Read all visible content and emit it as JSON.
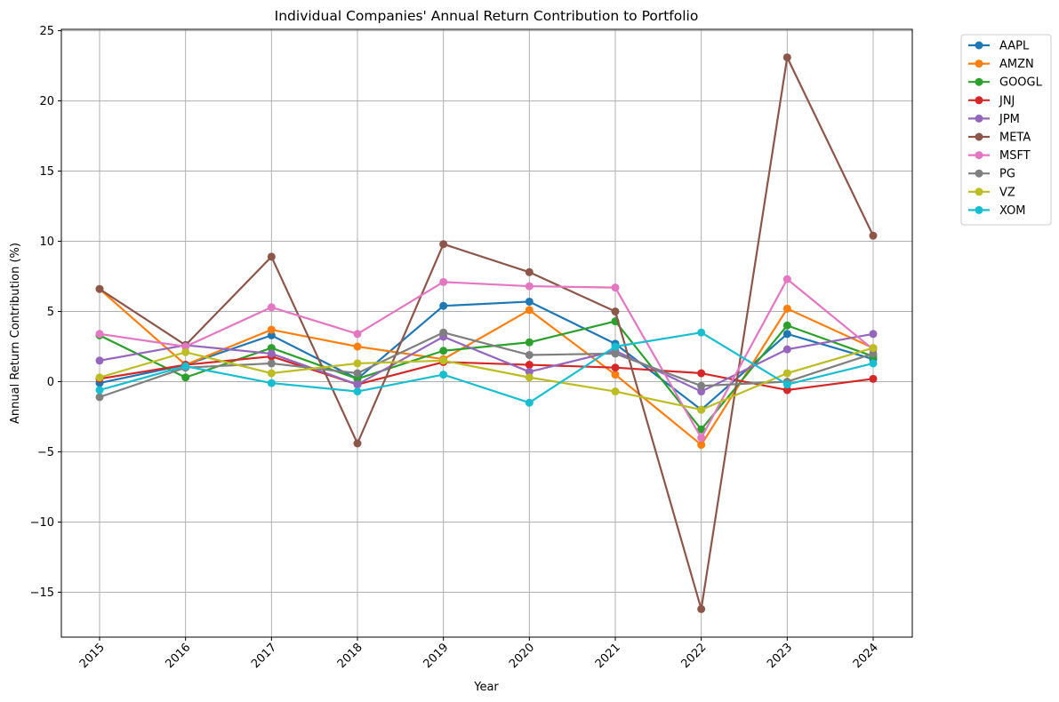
{
  "chart_data": {
    "type": "line",
    "title": "Individual Companies' Annual Return Contribution to Portfolio",
    "xlabel": "Year",
    "ylabel": "Annual Return Contribution (%)",
    "categories": [
      "2015",
      "2016",
      "2017",
      "2018",
      "2019",
      "2020",
      "2021",
      "2022",
      "2023",
      "2024"
    ],
    "ylim": [
      -18.2,
      25.1
    ],
    "yticks": [
      -15,
      -10,
      -5,
      0,
      5,
      10,
      15,
      20,
      25
    ],
    "ytick_labels": [
      "−15",
      "−10",
      "−5",
      "0",
      "5",
      "10",
      "15",
      "20",
      "25"
    ],
    "grid": true,
    "legend_position": "outside-top-right",
    "series": [
      {
        "name": "AAPL",
        "color": "#1f77b4",
        "values": [
          -0.1,
          1.2,
          3.3,
          0.2,
          5.4,
          5.7,
          2.7,
          -2.0,
          3.4,
          1.6
        ]
      },
      {
        "name": "AMZN",
        "color": "#ff7f0e",
        "values": [
          6.6,
          1.2,
          3.7,
          2.5,
          1.6,
          5.1,
          0.5,
          -4.5,
          5.2,
          2.4
        ]
      },
      {
        "name": "GOOGL",
        "color": "#2ca02c",
        "values": [
          3.3,
          0.3,
          2.4,
          0.2,
          2.2,
          2.8,
          4.3,
          -3.4,
          4.0,
          1.8
        ]
      },
      {
        "name": "JNJ",
        "color": "#d62728",
        "values": [
          0.2,
          1.2,
          1.8,
          -0.2,
          1.4,
          1.2,
          1.0,
          0.6,
          -0.6,
          0.2
        ]
      },
      {
        "name": "JPM",
        "color": "#9467bd",
        "values": [
          1.5,
          2.6,
          2.0,
          -0.2,
          3.2,
          0.7,
          2.2,
          -0.7,
          2.3,
          3.4
        ]
      },
      {
        "name": "META",
        "color": "#8c564b",
        "values": [
          6.6,
          2.6,
          8.9,
          -4.4,
          9.8,
          7.8,
          5.0,
          -16.2,
          23.1,
          10.4
        ]
      },
      {
        "name": "MSFT",
        "color": "#e377c2",
        "values": [
          3.4,
          2.5,
          5.3,
          3.4,
          7.1,
          6.8,
          6.7,
          -4.0,
          7.3,
          2.3
        ]
      },
      {
        "name": "PG",
        "color": "#7f7f7f",
        "values": [
          -1.1,
          1.0,
          1.3,
          0.6,
          3.5,
          1.9,
          2.0,
          -0.3,
          0.0,
          2.0
        ]
      },
      {
        "name": "VZ",
        "color": "#bcbd22",
        "values": [
          0.3,
          2.1,
          0.6,
          1.3,
          1.5,
          0.3,
          -0.7,
          -2.0,
          0.6,
          2.4
        ]
      },
      {
        "name": "XOM",
        "color": "#17becf",
        "values": [
          -0.6,
          1.1,
          -0.1,
          -0.7,
          0.5,
          -1.5,
          2.5,
          3.5,
          -0.2,
          1.3
        ]
      }
    ]
  }
}
